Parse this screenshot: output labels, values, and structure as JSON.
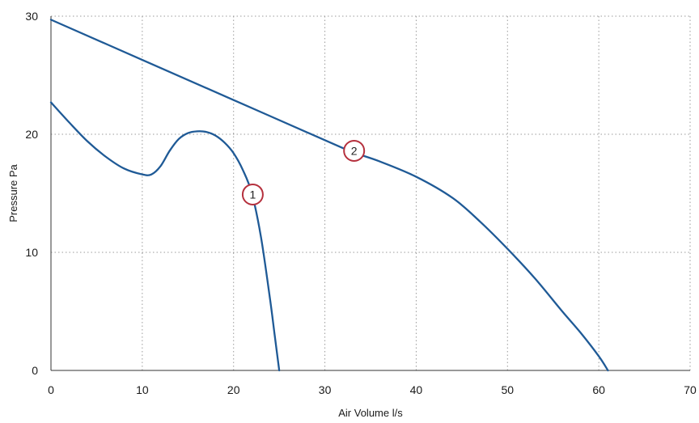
{
  "chart_data": {
    "type": "line",
    "title": "",
    "xlabel": "Air Volume l/s",
    "ylabel": "Pressure Pa",
    "xlim": [
      0,
      70
    ],
    "ylim": [
      0,
      30
    ],
    "x_ticks": [
      "0",
      "10",
      "20",
      "30",
      "40",
      "50",
      "60",
      "70"
    ],
    "y_ticks": [
      "0",
      "10",
      "20",
      "30"
    ],
    "grid": true,
    "series": [
      {
        "name": "",
        "color": "#1f5a96",
        "x": [
          0,
          2,
          4,
          6,
          8,
          10,
          11,
          12,
          13,
          14,
          15,
          16,
          17,
          18,
          19,
          20,
          21,
          22,
          23,
          24,
          24.5,
          25
        ],
        "y": [
          22.7,
          21.0,
          19.4,
          18.1,
          17.1,
          16.6,
          16.6,
          17.3,
          18.6,
          19.6,
          20.1,
          20.25,
          20.2,
          19.9,
          19.3,
          18.4,
          17.0,
          15.0,
          11.3,
          6.0,
          3.0,
          0
        ]
      },
      {
        "name": "",
        "color": "#1f5a96",
        "x": [
          0,
          10,
          20,
          30,
          33,
          36,
          40,
          44,
          47,
          50,
          53,
          56,
          58,
          60,
          61
        ],
        "y": [
          29.7,
          26.3,
          22.9,
          19.5,
          18.5,
          17.7,
          16.4,
          14.6,
          12.6,
          10.3,
          7.8,
          5.0,
          3.2,
          1.2,
          0
        ]
      }
    ],
    "annotations": [
      {
        "label": "1",
        "x": 22.1,
        "y": 14.9,
        "color": "#b5303d"
      },
      {
        "label": "2",
        "x": 33.2,
        "y": 18.6,
        "color": "#b5303d"
      }
    ]
  }
}
